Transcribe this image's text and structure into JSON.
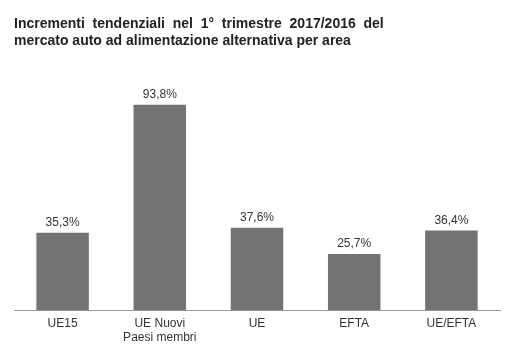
{
  "chart_data": {
    "type": "bar",
    "title": "Incrementi  tendenziali  nel  1°  trimestre  2017/2016  del\nmercato auto ad alimentazione alternativa per area",
    "categories": [
      "UE15",
      "UE Nuovi\nPaesi membri",
      "UE",
      "EFTA",
      "UE/EFTA"
    ],
    "values": [
      35.3,
      93.8,
      37.6,
      25.7,
      36.4
    ],
    "value_labels": [
      "35,3%",
      "93,8%",
      "37,6%",
      "25,7%",
      "36,4%"
    ],
    "color": "#737373",
    "ylim": [
      0,
      108
    ],
    "grid": false,
    "data_labels": true,
    "tick_labels": "x"
  }
}
